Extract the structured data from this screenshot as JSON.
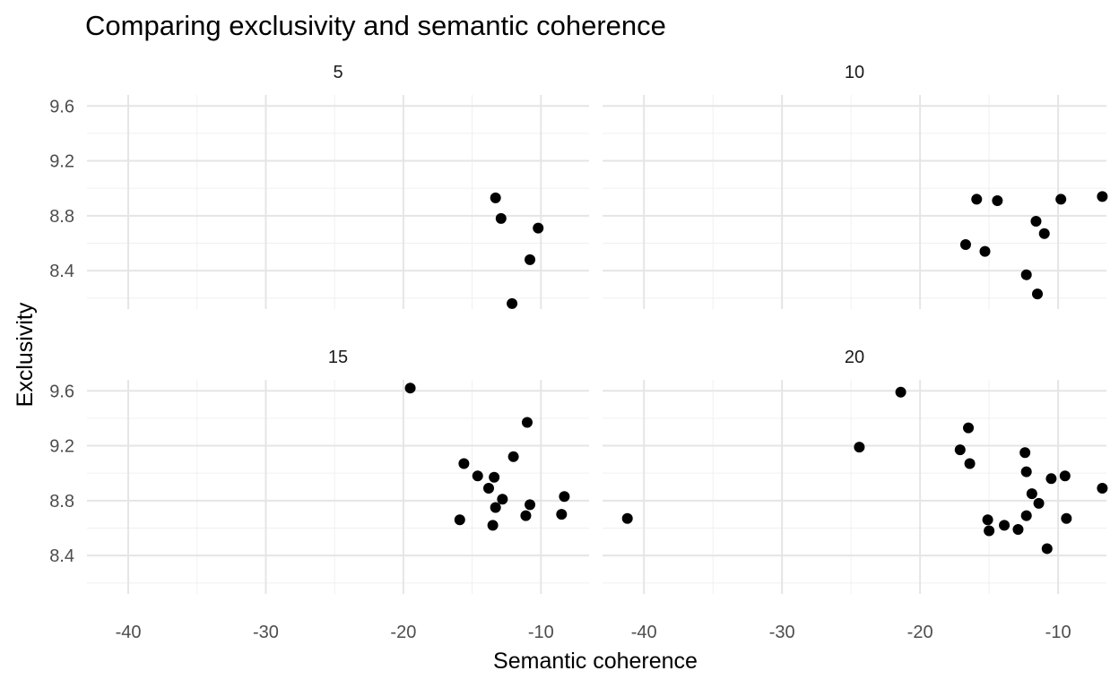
{
  "chart_data": {
    "type": "scatter",
    "title": "Comparing exclusivity and semantic coherence",
    "xlabel": "Semantic coherence",
    "ylabel": "Exclusivity",
    "xlim": [
      -43,
      -6.5
    ],
    "ylim": [
      8.12,
      9.68
    ],
    "x_ticks": [
      -40,
      -30,
      -20,
      -10
    ],
    "y_ticks": [
      8.4,
      8.8,
      9.2,
      9.6
    ],
    "x_tick_labels": [
      "-40",
      "-30",
      "-20",
      "-10"
    ],
    "y_tick_labels": [
      "8.4",
      "8.8",
      "9.2",
      "9.6"
    ],
    "grid": true,
    "point_color": "#000000",
    "facets": [
      {
        "label": "5",
        "points": [
          {
            "x": -13.3,
            "y": 8.93
          },
          {
            "x": -12.9,
            "y": 8.78
          },
          {
            "x": -10.2,
            "y": 8.71
          },
          {
            "x": -10.8,
            "y": 8.48
          },
          {
            "x": -12.1,
            "y": 8.16
          }
        ]
      },
      {
        "label": "10",
        "points": [
          {
            "x": -15.9,
            "y": 8.92
          },
          {
            "x": -14.4,
            "y": 8.91
          },
          {
            "x": -9.8,
            "y": 8.92
          },
          {
            "x": -6.8,
            "y": 8.94
          },
          {
            "x": -11.6,
            "y": 8.76
          },
          {
            "x": -11.0,
            "y": 8.67
          },
          {
            "x": -16.7,
            "y": 8.59
          },
          {
            "x": -15.3,
            "y": 8.54
          },
          {
            "x": -12.3,
            "y": 8.37
          },
          {
            "x": -11.5,
            "y": 8.23
          }
        ]
      },
      {
        "label": "15",
        "points": [
          {
            "x": -19.5,
            "y": 9.62
          },
          {
            "x": -11.0,
            "y": 9.37
          },
          {
            "x": -15.6,
            "y": 9.07
          },
          {
            "x": -12.0,
            "y": 9.12
          },
          {
            "x": -14.6,
            "y": 8.98
          },
          {
            "x": -13.4,
            "y": 8.97
          },
          {
            "x": -13.8,
            "y": 8.89
          },
          {
            "x": -12.8,
            "y": 8.81
          },
          {
            "x": -8.3,
            "y": 8.83
          },
          {
            "x": -10.8,
            "y": 8.77
          },
          {
            "x": -13.3,
            "y": 8.75
          },
          {
            "x": -8.5,
            "y": 8.7
          },
          {
            "x": -11.1,
            "y": 8.69
          },
          {
            "x": -15.9,
            "y": 8.66
          },
          {
            "x": -13.5,
            "y": 8.62
          }
        ]
      },
      {
        "label": "20",
        "points": [
          {
            "x": -21.4,
            "y": 9.59
          },
          {
            "x": -16.5,
            "y": 9.33
          },
          {
            "x": -24.4,
            "y": 9.19
          },
          {
            "x": -17.1,
            "y": 9.17
          },
          {
            "x": -12.4,
            "y": 9.15
          },
          {
            "x": -16.4,
            "y": 9.07
          },
          {
            "x": -12.3,
            "y": 9.01
          },
          {
            "x": -10.5,
            "y": 8.96
          },
          {
            "x": -9.5,
            "y": 8.98
          },
          {
            "x": -6.8,
            "y": 8.89
          },
          {
            "x": -11.9,
            "y": 8.85
          },
          {
            "x": -11.4,
            "y": 8.78
          },
          {
            "x": -41.2,
            "y": 8.67
          },
          {
            "x": -12.3,
            "y": 8.69
          },
          {
            "x": -9.4,
            "y": 8.67
          },
          {
            "x": -15.1,
            "y": 8.66
          },
          {
            "x": -13.9,
            "y": 8.62
          },
          {
            "x": -15.0,
            "y": 8.58
          },
          {
            "x": -12.9,
            "y": 8.59
          },
          {
            "x": -10.8,
            "y": 8.45
          }
        ]
      }
    ]
  }
}
